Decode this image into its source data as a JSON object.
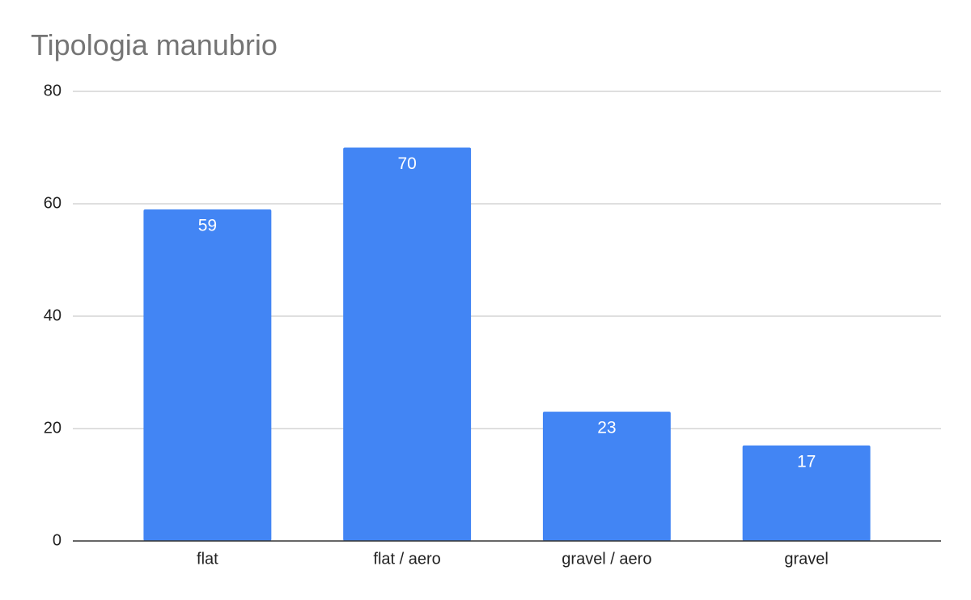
{
  "chart_data": {
    "type": "bar",
    "title": "Tipologia manubrio",
    "categories": [
      "flat",
      "flat / aero",
      "gravel / aero",
      "gravel"
    ],
    "values": [
      59,
      70,
      23,
      17
    ],
    "color": "#4285f4",
    "ylim": [
      0,
      80
    ],
    "yticks": [
      0,
      20,
      40,
      60,
      80
    ],
    "grid": true
  }
}
